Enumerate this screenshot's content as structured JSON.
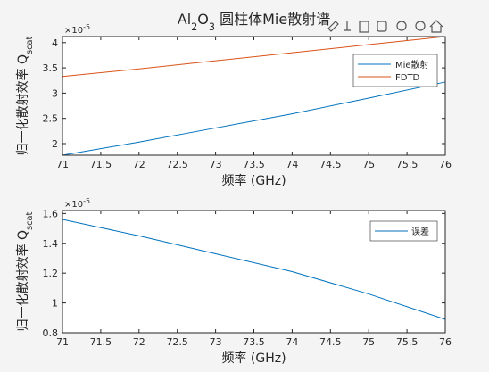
{
  "chart_data": [
    {
      "type": "line",
      "title": [
        {
          "text": "Al"
        },
        {
          "text": "2",
          "sub": true
        },
        {
          "text": "O"
        },
        {
          "text": "3",
          "sub": true
        },
        {
          "text": " 圆柱体Mie散射谱"
        }
      ],
      "xlabel": "频率 (GHz)",
      "ylabel": [
        {
          "text": "归一化散射效率 Q"
        },
        {
          "text": "scat",
          "sub": true
        }
      ],
      "y_multiplier": {
        "base": "×10",
        "exponent": "-5"
      },
      "x": [
        71,
        72,
        73,
        74,
        75,
        76
      ],
      "series": [
        {
          "name": "Mie散射",
          "color": "#0072bd",
          "values": [
            1.77,
            2.03,
            2.31,
            2.59,
            2.9,
            3.22
          ]
        },
        {
          "name": "FDTD",
          "color": "#d95319",
          "values": [
            3.33,
            3.48,
            3.64,
            3.8,
            3.96,
            4.12
          ]
        }
      ],
      "xlim": [
        71,
        76
      ],
      "xticks": [
        71,
        71.5,
        72,
        72.5,
        73,
        73.5,
        74,
        74.5,
        75,
        75.5,
        76
      ],
      "ylim": [
        1.77,
        4.12
      ],
      "yticks": [
        2,
        2.5,
        3,
        3.5,
        4
      ],
      "legend": "northeast"
    },
    {
      "type": "line",
      "xlabel": "频率 (GHz)",
      "ylabel": [
        {
          "text": "归一化散射效率 Q"
        },
        {
          "text": "scat",
          "sub": true
        }
      ],
      "y_multiplier": {
        "base": "×10",
        "exponent": "-5"
      },
      "x": [
        71,
        72,
        73,
        74,
        75,
        76
      ],
      "series": [
        {
          "name": "误差",
          "color": "#0072bd",
          "values": [
            1.56,
            1.45,
            1.33,
            1.21,
            1.06,
            0.89
          ]
        }
      ],
      "xlim": [
        71,
        76
      ],
      "xticks": [
        71,
        71.5,
        72,
        72.5,
        73,
        73.5,
        74,
        74.5,
        75,
        75.5,
        76
      ],
      "ylim": [
        0.8,
        1.62
      ],
      "yticks": [
        0.8,
        1,
        1.2,
        1.4,
        1.6
      ],
      "legend": "northeast"
    }
  ]
}
